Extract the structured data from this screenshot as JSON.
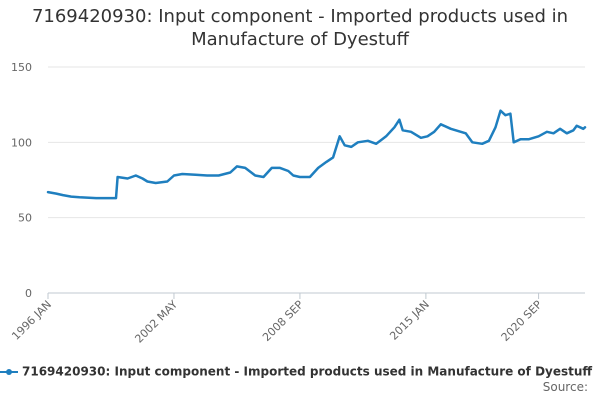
{
  "chart_data": {
    "type": "line",
    "title": "7169420930: Input component - Imported products used in Manufacture of Dyestuff",
    "y_ticks": [
      "0",
      "50",
      "100",
      "150"
    ],
    "ylim": [
      0,
      150
    ],
    "x_ticks": [
      "1996 JAN",
      "2002 MAY",
      "2008 SEP",
      "2015 JAN",
      "2020 SEP"
    ],
    "grid": true,
    "legend_position": "bottom-left",
    "series": [
      {
        "name": "7169420930: Input component - Imported products used in Manufacture of Dyestuff",
        "color": "#1f7fbf",
        "points": [
          [
            "1996-01",
            67
          ],
          [
            "1996-06",
            66
          ],
          [
            "1996-10",
            65
          ],
          [
            "1997-03",
            64
          ],
          [
            "1997-08",
            63.5
          ],
          [
            "1998-06",
            63
          ],
          [
            "1999-06",
            63
          ],
          [
            "1999-07",
            77
          ],
          [
            "2000-01",
            76
          ],
          [
            "2000-06",
            78
          ],
          [
            "2000-10",
            76
          ],
          [
            "2001-01",
            74
          ],
          [
            "2001-06",
            73
          ],
          [
            "2002-01",
            74
          ],
          [
            "2002-05",
            78
          ],
          [
            "2002-10",
            79
          ],
          [
            "2003-06",
            78.5
          ],
          [
            "2004-01",
            78
          ],
          [
            "2004-08",
            78
          ],
          [
            "2005-03",
            80
          ],
          [
            "2005-07",
            84
          ],
          [
            "2005-12",
            83
          ],
          [
            "2006-06",
            78
          ],
          [
            "2006-11",
            77
          ],
          [
            "2007-04",
            83
          ],
          [
            "2007-09",
            83
          ],
          [
            "2008-02",
            81
          ],
          [
            "2008-05",
            78
          ],
          [
            "2008-09",
            77
          ],
          [
            "2009-03",
            77
          ],
          [
            "2009-08",
            83
          ],
          [
            "2010-01",
            87
          ],
          [
            "2010-05",
            90
          ],
          [
            "2010-09",
            104
          ],
          [
            "2010-12",
            98
          ],
          [
            "2011-04",
            97
          ],
          [
            "2011-08",
            100
          ],
          [
            "2012-02",
            101
          ],
          [
            "2012-07",
            99
          ],
          [
            "2013-01",
            104
          ],
          [
            "2013-06",
            110
          ],
          [
            "2013-09",
            115
          ],
          [
            "2013-11",
            108
          ],
          [
            "2014-04",
            107
          ],
          [
            "2014-10",
            103
          ],
          [
            "2015-02",
            104
          ],
          [
            "2015-06",
            107
          ],
          [
            "2015-10",
            112
          ],
          [
            "2016-04",
            109
          ],
          [
            "2017-01",
            106
          ],
          [
            "2017-05",
            100
          ],
          [
            "2017-11",
            99
          ],
          [
            "2018-03",
            101
          ],
          [
            "2018-07",
            110
          ],
          [
            "2018-10",
            121
          ],
          [
            "2019-01",
            118
          ],
          [
            "2019-04",
            119
          ],
          [
            "2019-06",
            100
          ],
          [
            "2019-10",
            102
          ],
          [
            "2020-03",
            102
          ],
          [
            "2020-09",
            104
          ],
          [
            "2021-02",
            107
          ],
          [
            "2021-06",
            106
          ],
          [
            "2021-10",
            109
          ],
          [
            "2022-02",
            106
          ],
          [
            "2022-06",
            108
          ],
          [
            "2022-08",
            111
          ],
          [
            "2022-12",
            109
          ],
          [
            "2023-01",
            110
          ]
        ]
      }
    ]
  },
  "footer": {
    "source_label": "Source:"
  }
}
